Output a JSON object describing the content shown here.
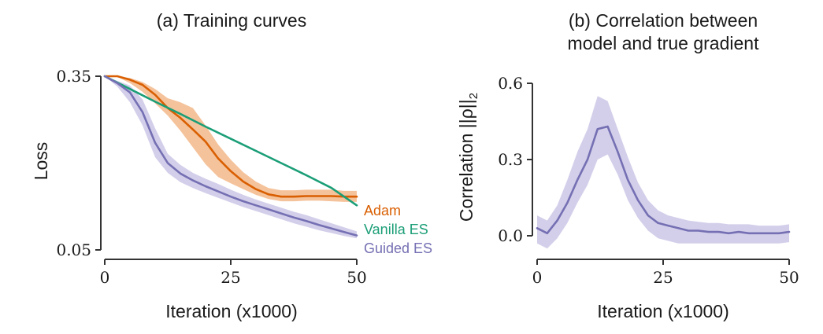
{
  "chart_data": [
    {
      "type": "line",
      "title": "(a) Training curves",
      "xlabel": "Iteration (x1000)",
      "ylabel": "Loss",
      "xlim": [
        0,
        50
      ],
      "ylim": [
        0.05,
        0.35
      ],
      "xticks": [
        0,
        25,
        50
      ],
      "xtick_labels": [
        "0",
        "25",
        "50"
      ],
      "yticks": [
        0.05,
        0.35
      ],
      "ytick_labels": [
        "0.05",
        "0.35"
      ],
      "legend_position": "right-inline",
      "series": [
        {
          "name": "Adam",
          "color": "#d95f02",
          "band_color": "#f3b98a",
          "x": [
            0,
            2.5,
            5,
            7.5,
            10,
            12.5,
            15,
            17.5,
            20,
            22.5,
            25,
            27.5,
            30,
            32.5,
            35,
            37.5,
            40,
            42.5,
            45,
            47.5,
            50
          ],
          "y": [
            0.35,
            0.35,
            0.344,
            0.335,
            0.318,
            0.295,
            0.278,
            0.258,
            0.237,
            0.208,
            0.186,
            0.168,
            0.155,
            0.146,
            0.142,
            0.142,
            0.143,
            0.143,
            0.143,
            0.142,
            0.142
          ],
          "lower": [
            0.35,
            0.349,
            0.338,
            0.323,
            0.303,
            0.282,
            0.256,
            0.227,
            0.198,
            0.176,
            0.165,
            0.155,
            0.145,
            0.138,
            0.134,
            0.134,
            0.135,
            0.135,
            0.134,
            0.133,
            0.133
          ],
          "upper": [
            0.35,
            0.35,
            0.347,
            0.34,
            0.328,
            0.312,
            0.305,
            0.295,
            0.265,
            0.232,
            0.206,
            0.184,
            0.168,
            0.157,
            0.153,
            0.153,
            0.154,
            0.154,
            0.154,
            0.152,
            0.152
          ]
        },
        {
          "name": "Vanilla ES",
          "color": "#1b9e77",
          "x": [
            0,
            5,
            10,
            15,
            20,
            25,
            30,
            35,
            40,
            45,
            50
          ],
          "y": [
            0.35,
            0.328,
            0.306,
            0.285,
            0.263,
            0.242,
            0.221,
            0.2,
            0.179,
            0.157,
            0.127
          ]
        },
        {
          "name": "Guided ES",
          "color": "#7570b3",
          "band_color": "#cbc7e6",
          "x": [
            0,
            2.5,
            5,
            7.5,
            10,
            12.5,
            15,
            17.5,
            20,
            22.5,
            25,
            27.5,
            30,
            32.5,
            35,
            37.5,
            40,
            42.5,
            45,
            47.5,
            50
          ],
          "y": [
            0.35,
            0.338,
            0.322,
            0.288,
            0.235,
            0.2,
            0.182,
            0.17,
            0.16,
            0.151,
            0.142,
            0.134,
            0.127,
            0.12,
            0.113,
            0.106,
            0.1,
            0.093,
            0.087,
            0.081,
            0.075
          ],
          "lower": [
            0.35,
            0.332,
            0.305,
            0.265,
            0.21,
            0.183,
            0.167,
            0.157,
            0.148,
            0.14,
            0.132,
            0.124,
            0.117,
            0.11,
            0.103,
            0.096,
            0.09,
            0.084,
            0.079,
            0.074,
            0.07
          ],
          "upper": [
            0.35,
            0.342,
            0.334,
            0.31,
            0.26,
            0.216,
            0.197,
            0.183,
            0.173,
            0.164,
            0.154,
            0.145,
            0.137,
            0.13,
            0.123,
            0.116,
            0.11,
            0.103,
            0.096,
            0.089,
            0.082
          ]
        }
      ]
    },
    {
      "type": "line",
      "title": "(b) Correlation between model and true gradient",
      "title_lines": [
        "(b) Correlation between",
        "model and true gradient"
      ],
      "xlabel": "Iteration (x1000)",
      "ylabel": "Correlation ||ρ||",
      "ylabel_subscript": "2",
      "xlim": [
        0,
        50
      ],
      "ylim": [
        0.0,
        0.6
      ],
      "xticks": [
        0,
        25,
        50
      ],
      "xtick_labels": [
        "0",
        "25",
        "50"
      ],
      "yticks": [
        0.0,
        0.3,
        0.6
      ],
      "ytick_labels": [
        "0.0",
        "0.3",
        "0.6"
      ],
      "series": [
        {
          "name": "Correlation",
          "color": "#7570b3",
          "band_color": "#cbc7e6",
          "x": [
            0,
            2,
            4,
            6,
            8,
            10,
            12,
            14,
            16,
            18,
            20,
            22,
            24,
            26,
            28,
            30,
            32,
            34,
            36,
            38,
            40,
            42,
            44,
            46,
            48,
            50
          ],
          "y": [
            0.03,
            0.01,
            0.06,
            0.13,
            0.22,
            0.3,
            0.42,
            0.43,
            0.33,
            0.22,
            0.14,
            0.08,
            0.05,
            0.04,
            0.03,
            0.02,
            0.02,
            0.015,
            0.015,
            0.01,
            0.015,
            0.01,
            0.01,
            0.01,
            0.01,
            0.015
          ],
          "lower": [
            -0.03,
            -0.05,
            -0.01,
            0.05,
            0.13,
            0.2,
            0.3,
            0.32,
            0.24,
            0.14,
            0.07,
            0.02,
            -0.01,
            -0.02,
            -0.03,
            -0.03,
            -0.03,
            -0.03,
            -0.03,
            -0.03,
            -0.03,
            -0.03,
            -0.03,
            -0.03,
            -0.03,
            -0.025
          ],
          "upper": [
            0.08,
            0.06,
            0.12,
            0.22,
            0.33,
            0.42,
            0.55,
            0.53,
            0.42,
            0.31,
            0.21,
            0.14,
            0.1,
            0.08,
            0.07,
            0.06,
            0.055,
            0.05,
            0.05,
            0.045,
            0.045,
            0.045,
            0.04,
            0.04,
            0.04,
            0.045
          ]
        }
      ]
    }
  ]
}
